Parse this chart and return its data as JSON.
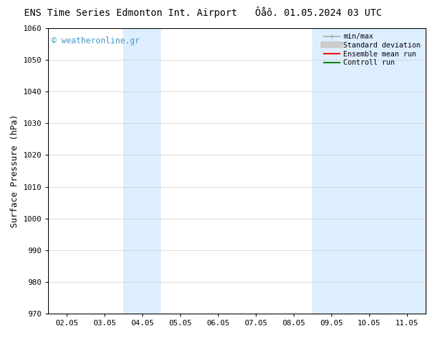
{
  "title_left": "ENS Time Series Edmonton Int. Airport",
  "title_right": "Ôåô. 01.05.2024 03 UTC",
  "ylabel": "Surface Pressure (hPa)",
  "ylim": [
    970,
    1060
  ],
  "yticks": [
    970,
    980,
    990,
    1000,
    1010,
    1020,
    1030,
    1040,
    1050,
    1060
  ],
  "x_labels": [
    "02.05",
    "03.05",
    "04.05",
    "05.05",
    "06.05",
    "07.05",
    "08.05",
    "09.05",
    "10.05",
    "11.05"
  ],
  "x_positions": [
    0,
    1,
    2,
    3,
    4,
    5,
    6,
    7,
    8,
    9
  ],
  "x_lim": [
    -0.5,
    9.5
  ],
  "shaded_bands": [
    {
      "x_start": 1.5,
      "x_end": 2.5,
      "color": "#ddeeff"
    },
    {
      "x_start": 6.5,
      "x_end": 9.5,
      "color": "#ddeeff"
    }
  ],
  "watermark_text": "© weatheronline.gr",
  "watermark_color": "#4499cc",
  "background_color": "#ffffff",
  "grid_color": "#cccccc",
  "legend_items": [
    {
      "label": "min/max",
      "color": "#aaaaaa",
      "lw": 1.5
    },
    {
      "label": "Standard deviation",
      "color": "#cccccc",
      "lw": 7
    },
    {
      "label": "Ensemble mean run",
      "color": "#ff0000",
      "lw": 1.5
    },
    {
      "label": "Controll run",
      "color": "#008000",
      "lw": 1.5
    }
  ],
  "title_fontsize": 10,
  "tick_fontsize": 8,
  "ylabel_fontsize": 9
}
